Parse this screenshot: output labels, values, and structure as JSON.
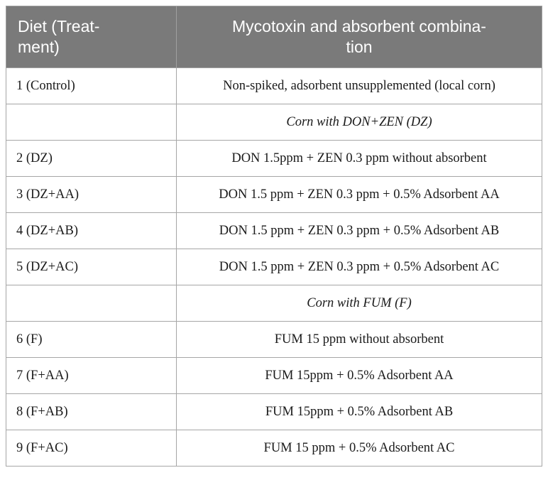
{
  "table": {
    "headers": {
      "diet": "Diet (Treat-\nment)",
      "combination": "Mycotoxin and absorbent combina-\ntion"
    },
    "rows": [
      {
        "diet": "1 (Control)",
        "combination": "Non-spiked, adsorbent unsupplemented (local corn)",
        "group": false
      },
      {
        "diet": "",
        "combination": "Corn with DON+ZEN (DZ)",
        "group": true
      },
      {
        "diet": "2 (DZ)",
        "combination": "DON 1.5ppm + ZEN 0.3 ppm without absorbent",
        "group": false
      },
      {
        "diet": "3 (DZ+AA)",
        "combination": "DON 1.5 ppm + ZEN 0.3 ppm + 0.5% Adsorbent AA",
        "group": false
      },
      {
        "diet": "4 (DZ+AB)",
        "combination": "DON 1.5 ppm + ZEN 0.3 ppm + 0.5% Adsorbent AB",
        "group": false
      },
      {
        "diet": "5 (DZ+AC)",
        "combination": "DON 1.5 ppm + ZEN 0.3 ppm + 0.5% Adsorbent AC",
        "group": false
      },
      {
        "diet": "",
        "combination": "Corn with FUM (F)",
        "group": true
      },
      {
        "diet": "6 (F)",
        "combination": "FUM 15 ppm without absorbent",
        "group": false
      },
      {
        "diet": "7 (F+AA)",
        "combination": "FUM 15ppm + 0.5% Adsorbent AA",
        "group": false
      },
      {
        "diet": "8 (F+AB)",
        "combination": "FUM 15ppm + 0.5% Adsorbent AB",
        "group": false
      },
      {
        "diet": "9 (F+AC)",
        "combination": "FUM 15 ppm + 0.5% Adsorbent AC",
        "group": false
      }
    ]
  }
}
